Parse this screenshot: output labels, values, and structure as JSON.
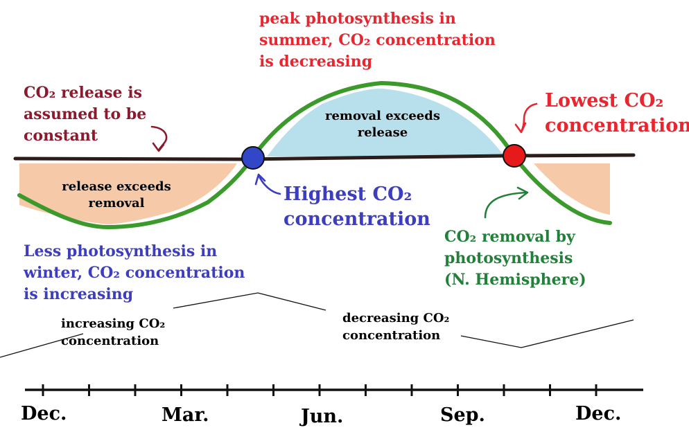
{
  "colors": {
    "red": "#e8262f",
    "maroon": "#8b1a2e",
    "blue": "#3d3dbf",
    "green": "#22803a",
    "curve": "#3c9a2c",
    "baseline": "#2a1d1a",
    "release_fill": "#f6c9a8",
    "removal_fill": "#b8e0ec",
    "highest_dot": "#3246c8",
    "lowest_dot": "#e61a1a"
  },
  "annotations": {
    "peak": [
      "peak photosynthesis in",
      "summer, CO₂ concentration",
      "is decreasing"
    ],
    "release_constant": [
      "CO₂ release is",
      "assumed to be",
      "constant"
    ],
    "lowest": [
      "Lowest CO₂",
      "concentration"
    ],
    "highest": [
      "Highest CO₂",
      "concentration"
    ],
    "winter": [
      "Less photosynthesis in",
      "winter, CO₂ concentration",
      "is increasing"
    ],
    "removal_by_photo": [
      "CO₂ removal by",
      "photosynthesis",
      "(N. Hemisphere)"
    ]
  },
  "regions": {
    "release_exceeds": [
      "release exceeds",
      "removal"
    ],
    "removal_exceeds": [
      "removal exceeds",
      "release"
    ]
  },
  "trend": {
    "increasing": [
      "increasing CO₂",
      "concentration"
    ],
    "decreasing": [
      "decreasing CO₂",
      "concentration"
    ]
  },
  "axis": {
    "months": [
      "Dec.",
      "Mar.",
      "Jun.",
      "Sep.",
      "Dec."
    ]
  }
}
